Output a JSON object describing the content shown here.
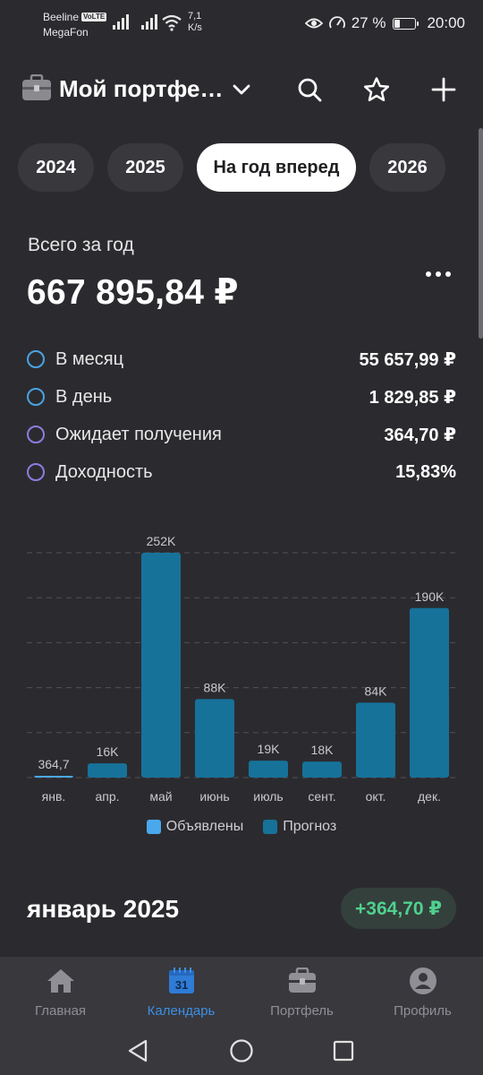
{
  "status_bar": {
    "carrier1": "Beeline",
    "volte": "VoLTE",
    "carrier2": "MegaFon",
    "speed_value": "7,1",
    "speed_unit": "K/s",
    "battery_percent": "27 %",
    "battery_level": 0.27,
    "time": "20:00"
  },
  "header": {
    "title": "Мой портфе…",
    "icons": [
      "briefcase-icon",
      "chevron-down-icon",
      "search-icon",
      "star-icon",
      "plus-icon"
    ]
  },
  "tabs": [
    {
      "label": "2024",
      "active": false
    },
    {
      "label": "2025",
      "active": false
    },
    {
      "label": "На год вперед",
      "active": true
    },
    {
      "label": "2026",
      "active": false
    }
  ],
  "summary": {
    "total_label": "Всего за год",
    "total_value": "667 895,84 ₽",
    "stats": [
      {
        "label": "В месяц",
        "value": "55 657,99 ₽",
        "dot": "blue"
      },
      {
        "label": "В день",
        "value": "1 829,85 ₽",
        "dot": "blue"
      },
      {
        "label": "Ожидает получения",
        "value": "364,70 ₽",
        "dot": "violet"
      },
      {
        "label": "Доходность",
        "value": "15,83%",
        "dot": "violet"
      }
    ]
  },
  "chart_data": {
    "type": "bar",
    "categories": [
      "янв.",
      "апр.",
      "май",
      "июнь",
      "июль",
      "сент.",
      "окт.",
      "дек."
    ],
    "series": [
      {
        "name": "Объявлены",
        "values": [
          364.7,
          0,
          0,
          0,
          0,
          0,
          0,
          0
        ]
      },
      {
        "name": "Прогноз",
        "values": [
          0,
          16000,
          252000,
          88000,
          19000,
          18000,
          84000,
          190000
        ]
      }
    ],
    "data_labels": [
      "364,7",
      "16K",
      "252K",
      "88K",
      "19K",
      "18K",
      "84K",
      "190K"
    ],
    "ylim": [
      0,
      252000
    ],
    "grid": true,
    "legend_position": "bottom"
  },
  "legend": [
    {
      "label": "Объявлены",
      "color": "#4aa8ec"
    },
    {
      "label": "Прогноз",
      "color": "#17729a"
    }
  ],
  "month_section": {
    "title": "январь 2025",
    "amount": "+364,70 ₽"
  },
  "bottom_nav": [
    {
      "label": "Главная",
      "icon": "home-icon",
      "active": false
    },
    {
      "label": "Календарь",
      "icon": "calendar-icon",
      "active": true,
      "badge": "31"
    },
    {
      "label": "Портфель",
      "icon": "briefcase-icon",
      "active": false
    },
    {
      "label": "Профиль",
      "icon": "profile-icon",
      "active": false
    }
  ],
  "colors": {
    "background": "#2b2b2f",
    "accent": "#3d8fe3",
    "bar_forecast": "#17729a",
    "bar_declared": "#4aa8ec",
    "positive": "#4fd08f"
  }
}
